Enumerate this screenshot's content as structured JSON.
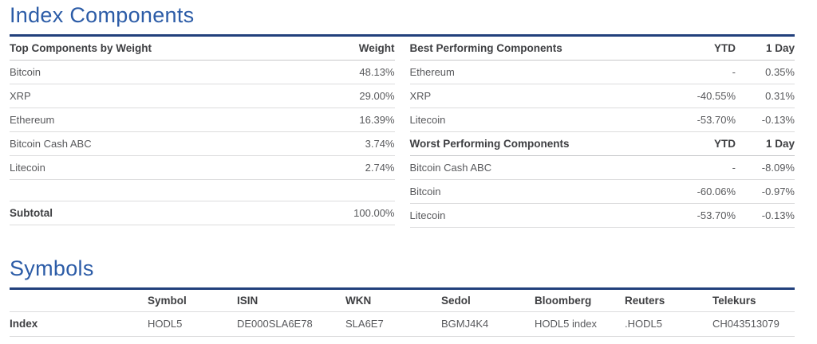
{
  "index_components": {
    "title": "Index Components",
    "weights": {
      "title": "Top Components by Weight",
      "value_header": "Weight",
      "rows": [
        {
          "name": "Bitcoin",
          "weight": "48.13%"
        },
        {
          "name": "XRP",
          "weight": "29.00%"
        },
        {
          "name": "Ethereum",
          "weight": "16.39%"
        },
        {
          "name": "Bitcoin Cash ABC",
          "weight": "3.74%"
        },
        {
          "name": "Litecoin",
          "weight": "2.74%"
        }
      ],
      "subtotal": {
        "label": "Subtotal",
        "value": "100.00%"
      }
    },
    "best": {
      "title": "Best Performing Components",
      "ytd_header": "YTD",
      "day_header": "1 Day",
      "rows": [
        {
          "name": "Ethereum",
          "ytd": "-",
          "day": "0.35%"
        },
        {
          "name": "XRP",
          "ytd": "-40.55%",
          "day": "0.31%"
        },
        {
          "name": "Litecoin",
          "ytd": "-53.70%",
          "day": "-0.13%"
        }
      ]
    },
    "worst": {
      "title": "Worst Performing Components",
      "ytd_header": "YTD",
      "day_header": "1 Day",
      "rows": [
        {
          "name": "Bitcoin Cash ABC",
          "ytd": "-",
          "day": "-8.09%"
        },
        {
          "name": "Bitcoin",
          "ytd": "-60.06%",
          "day": "-0.97%"
        },
        {
          "name": "Litecoin",
          "ytd": "-53.70%",
          "day": "-0.13%"
        }
      ]
    }
  },
  "symbols": {
    "title": "Symbols",
    "columns": {
      "label": "",
      "symbol": "Symbol",
      "isin": "ISIN",
      "wkn": "WKN",
      "sedol": "Sedol",
      "bloomberg": "Bloomberg",
      "reuters": "Reuters",
      "telekurs": "Telekurs"
    },
    "rows": [
      {
        "label": "Index",
        "symbol": "HODL5",
        "isin": "DE000SLA6E78",
        "wkn": "SLA6E7",
        "sedol": "BGMJ4K4",
        "bloomberg": "HODL5 index",
        "reuters": ".HODL5",
        "telekurs": "CH043513079"
      }
    ]
  },
  "colors": {
    "heading_blue": "#2c5ca7",
    "rule_navy": "#21407c",
    "header_text": "#3e3f42",
    "body_text": "#58595c",
    "divider_gray": "#dcdcdd"
  }
}
